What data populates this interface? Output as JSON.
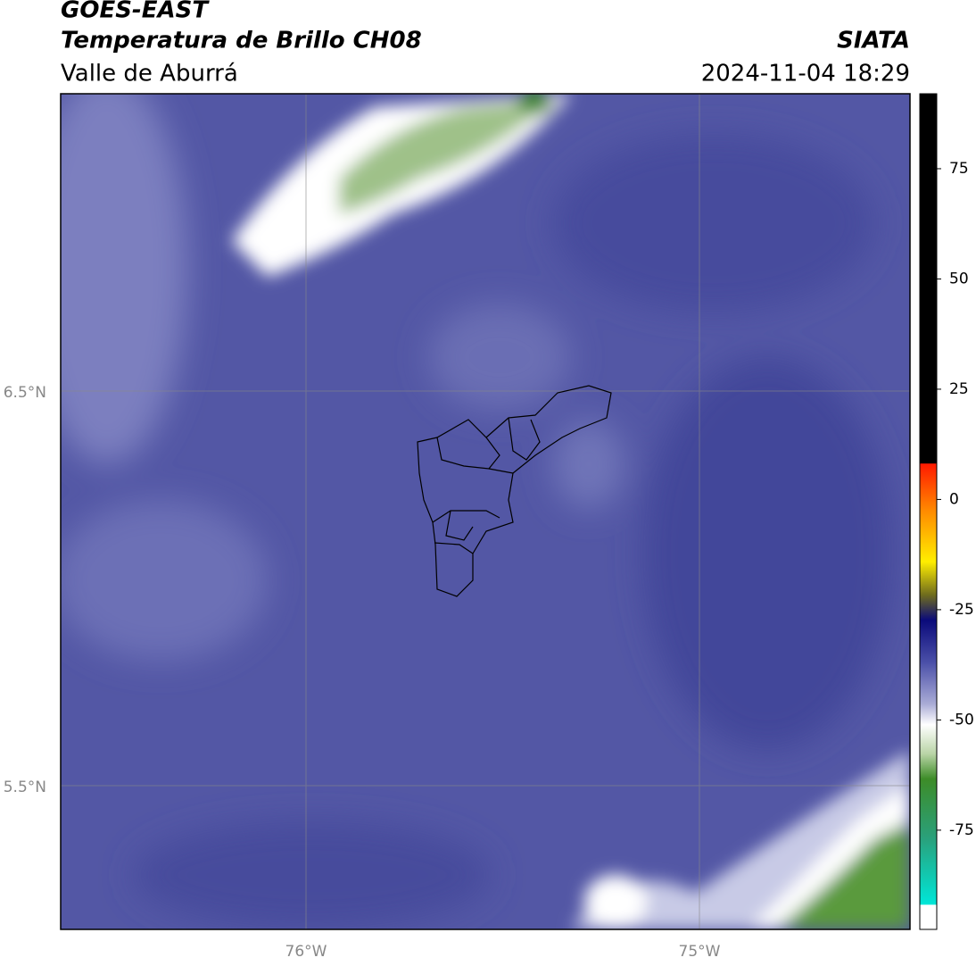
{
  "header": {
    "title": "GOES-EAST",
    "subtitle": "Temperatura de Brillo CH08",
    "organization": "SIATA",
    "region": "Valle de Aburrá",
    "datetime": "2024-11-04 18:29"
  },
  "map": {
    "lat_labels": [
      "6.5°N",
      "5.5°N"
    ],
    "lon_labels": [
      "76°W",
      "75°W"
    ]
  },
  "colorbar": {
    "lim": [
      -97.5,
      92
    ],
    "ticks": [
      75,
      50,
      25,
      0,
      -25,
      -50,
      -75
    ]
  }
}
